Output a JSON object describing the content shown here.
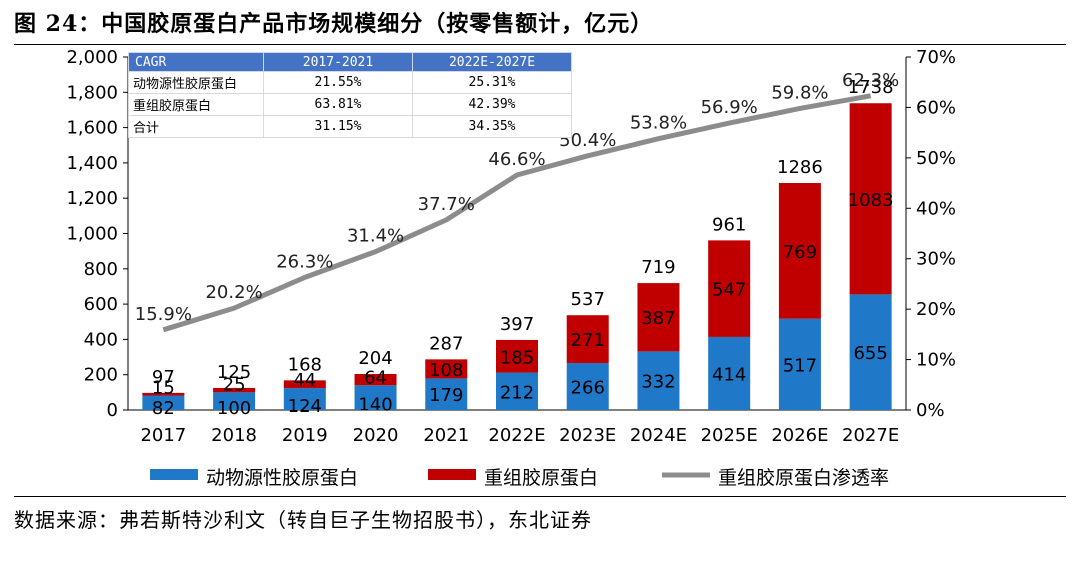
{
  "title": "图 24：中国胶原蛋白产品市场规模细分（按零售额计，亿元）",
  "source": "数据来源：弗若斯特沙利文（转自巨子生物招股书），东北证券",
  "colors": {
    "animal": "#1f78c8",
    "recombinant": "#c00000",
    "penetration": "#8c8c8c",
    "table_header": "#4472c4"
  },
  "cagr_table": {
    "headers": [
      "CAGR",
      "2017-2021",
      "2022E-2027E"
    ],
    "rows": [
      [
        "动物源性胶原蛋白",
        "21.55%",
        "25.31%"
      ],
      [
        "重组胶原蛋白",
        "63.81%",
        "42.39%"
      ],
      [
        "合计",
        "31.15%",
        "34.35%"
      ]
    ]
  },
  "chart_data": {
    "type": "bar",
    "stacked": true,
    "categories": [
      "2017",
      "2018",
      "2019",
      "2020",
      "2021",
      "2022E",
      "2023E",
      "2024E",
      "2025E",
      "2026E",
      "2027E"
    ],
    "series": [
      {
        "name": "动物源性胶原蛋白",
        "values": [
          82,
          100,
          124,
          140,
          179,
          212,
          266,
          332,
          414,
          517,
          655
        ],
        "labels": [
          "82",
          "100",
          "124",
          "140",
          "179",
          "212",
          "266",
          "332",
          "414",
          "517",
          "655"
        ]
      },
      {
        "name": "重组胶原蛋白",
        "values": [
          15,
          25,
          44,
          64,
          108,
          185,
          271,
          387,
          547,
          769,
          1083
        ],
        "labels": [
          "15",
          "25",
          "44",
          "64",
          "108",
          "185",
          "271",
          "387",
          "547",
          "769",
          "1083"
        ]
      }
    ],
    "totals": [
      "97",
      "125",
      "168",
      "204",
      "287",
      "397",
      "537",
      "719",
      "961",
      "1286",
      "1738"
    ],
    "line": {
      "name": "重组胶原蛋白渗透率",
      "axis": "right",
      "values": [
        15.9,
        20.2,
        26.3,
        31.4,
        37.7,
        46.6,
        50.4,
        53.8,
        56.9,
        59.8,
        62.3
      ],
      "labels": [
        "15.9%",
        "20.2%",
        "26.3%",
        "31.4%",
        "37.7%",
        "46.6%",
        "50.4%",
        "53.8%",
        "56.9%",
        "59.8%",
        "62.3%"
      ]
    },
    "y_left": {
      "min": 0,
      "max": 2000,
      "ticks": [
        "0",
        "200",
        "400",
        "600",
        "800",
        "1,000",
        "1,200",
        "1,400",
        "1,600",
        "1,800",
        "2,000"
      ]
    },
    "y_right": {
      "min": 0,
      "max": 70,
      "ticks": [
        "0%",
        "10%",
        "20%",
        "30%",
        "40%",
        "50%",
        "60%",
        "70%"
      ]
    },
    "legend": [
      "动物源性胶原蛋白",
      "重组胶原蛋白",
      "重组胶原蛋白渗透率"
    ],
    "legend_position": "bottom",
    "grid": false
  }
}
